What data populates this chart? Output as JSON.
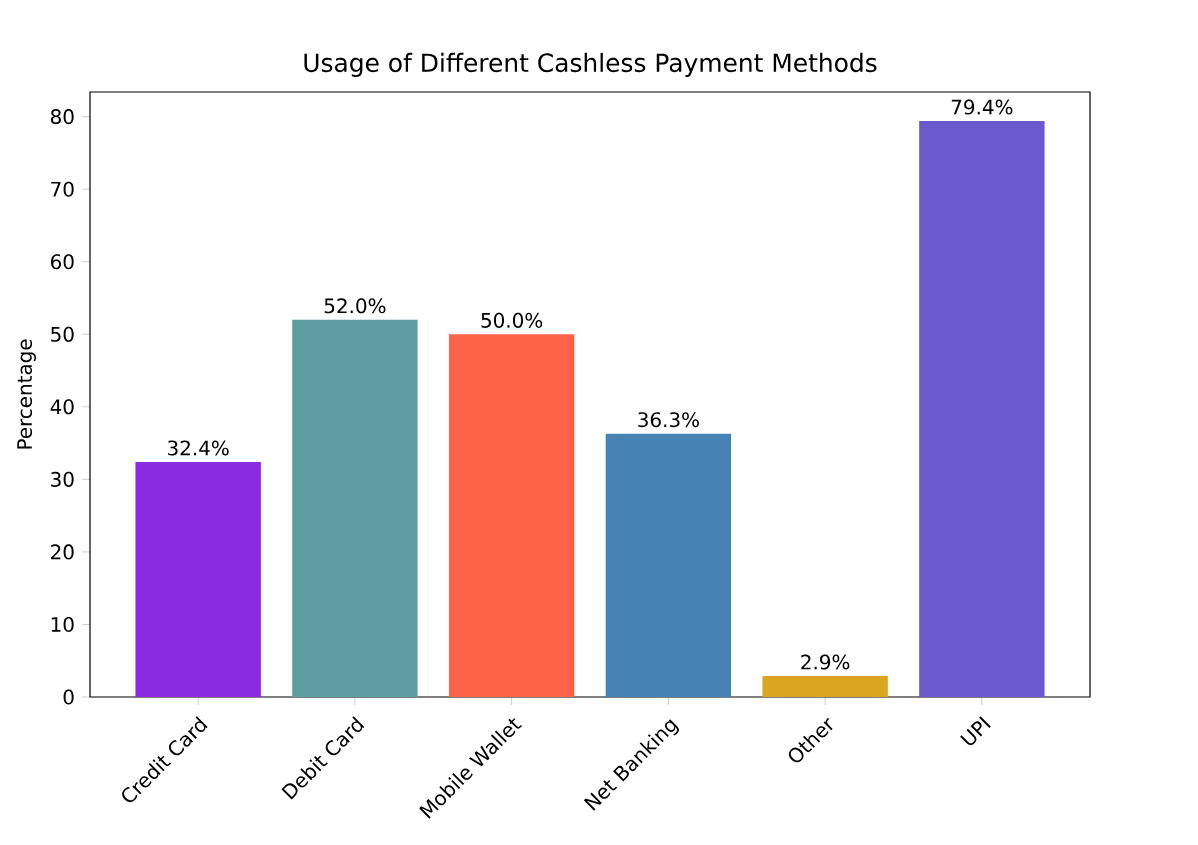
{
  "chart_data": {
    "type": "bar",
    "title": "Usage of Different Cashless Payment Methods",
    "ylabel": "Percentage",
    "categories": [
      "Credit Card",
      "Debit Card",
      "Mobile Wallet",
      "Net Banking",
      "Other",
      "UPI"
    ],
    "values": [
      32.4,
      52.0,
      50.0,
      36.3,
      2.9,
      79.4
    ],
    "colors": [
      "#8a2be2",
      "#5f9ea0",
      "#ff6347",
      "#4682b4",
      "#daa520",
      "#6a5acd"
    ],
    "value_labels": [
      "32.4%",
      "52.0%",
      "50.0%",
      "36.3%",
      "2.9%",
      "79.4%"
    ],
    "ylim": [
      0,
      83.4
    ],
    "yticks": [
      0,
      10,
      20,
      30,
      40,
      50,
      60,
      70,
      80
    ]
  }
}
